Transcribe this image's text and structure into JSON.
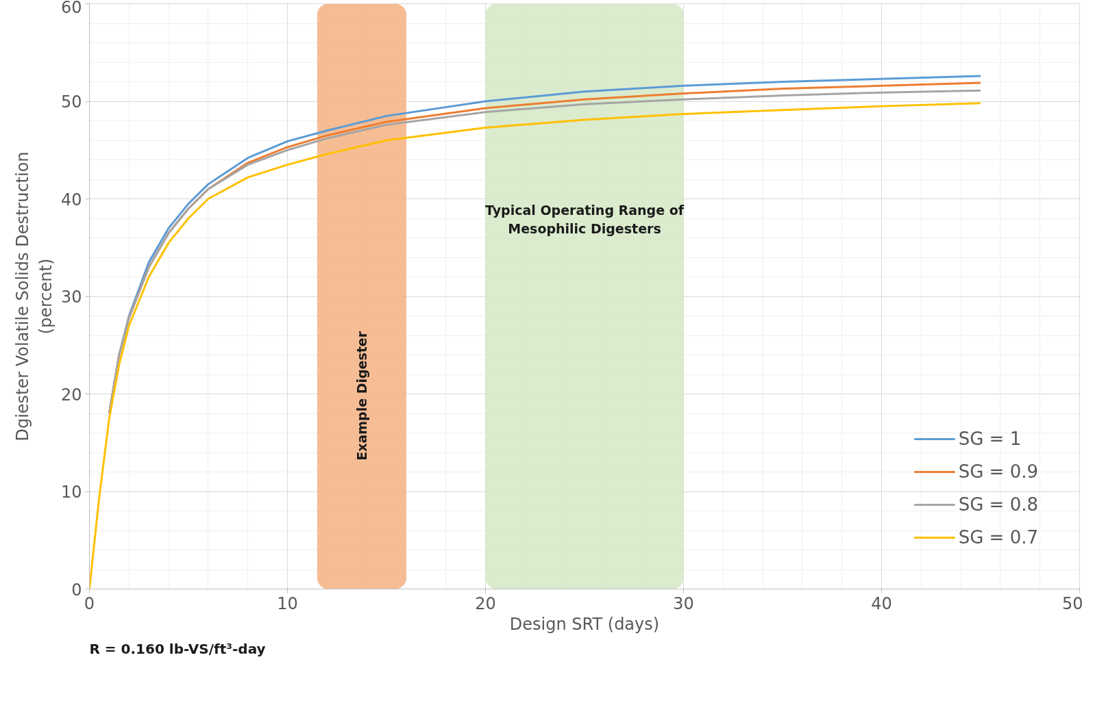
{
  "chart_data": {
    "type": "line",
    "xlabel": "Design SRT (days)",
    "ylabel": "Dgiester Volatile Solids Destruction\n(percent)",
    "xlim": [
      0,
      50
    ],
    "ylim": [
      0,
      60
    ],
    "xticks": [
      0,
      10,
      20,
      30,
      40,
      50
    ],
    "yticks": [
      0,
      10,
      20,
      30,
      40,
      50,
      60
    ],
    "grid": true,
    "legend": "bottom right",
    "line_style": "solid",
    "x": [
      0,
      0.5,
      1,
      1.5,
      2,
      3,
      4,
      5,
      6,
      8,
      10,
      12,
      15,
      20,
      25,
      30,
      35,
      40,
      45
    ],
    "series": [
      {
        "name": "SG = 1",
        "color": "#5b9bd5",
        "x": [
          1,
          1.5,
          2,
          3,
          4,
          5,
          6,
          8,
          10,
          12,
          15,
          20,
          25,
          30,
          35,
          40,
          45
        ],
        "values": [
          18,
          24,
          28,
          33.5,
          37,
          39.5,
          41.5,
          44.2,
          45.9,
          47,
          48.5,
          50,
          51,
          51.6,
          52,
          52.3,
          52.6
        ]
      },
      {
        "name": "SG = 0.9",
        "color": "#ed7d31",
        "x": [
          1,
          1.5,
          2,
          3,
          4,
          5,
          6,
          8,
          10,
          12,
          15,
          20,
          25,
          30,
          35,
          40,
          45
        ],
        "values": [
          18,
          24,
          27.8,
          33,
          36.5,
          39,
          41,
          43.7,
          45.3,
          46.5,
          47.9,
          49.3,
          50.2,
          50.8,
          51.3,
          51.6,
          51.9
        ]
      },
      {
        "name": "SG = 0.8",
        "color": "#a5a5a5",
        "x": [
          1,
          1.5,
          2,
          3,
          4,
          5,
          6,
          8,
          10,
          12,
          15,
          20,
          25,
          30,
          35,
          40,
          45
        ],
        "values": [
          18,
          24,
          27.8,
          33,
          36.5,
          39,
          41,
          43.5,
          45,
          46.2,
          47.6,
          48.9,
          49.7,
          50.2,
          50.6,
          50.9,
          51.1
        ]
      },
      {
        "name": "SG = 0.7",
        "color": "#ffc000",
        "values": [
          0,
          9.5,
          17.5,
          23,
          27,
          32,
          35.5,
          38,
          40,
          42.2,
          43.5,
          44.6,
          46,
          47.3,
          48.1,
          48.7,
          49.1,
          49.5,
          49.8
        ]
      }
    ],
    "bands": [
      {
        "axis": "x",
        "from": 11.5,
        "to": 16,
        "label": "Example Digester",
        "color": "#f4b183"
      },
      {
        "axis": "x",
        "from": 20,
        "to": 30,
        "label": "Typical Operating Range of\nMesophilic Digesters",
        "color": "#d5e8c4"
      }
    ],
    "annotations": [
      "R = 0.160 lb-VS/ft³-day"
    ]
  }
}
